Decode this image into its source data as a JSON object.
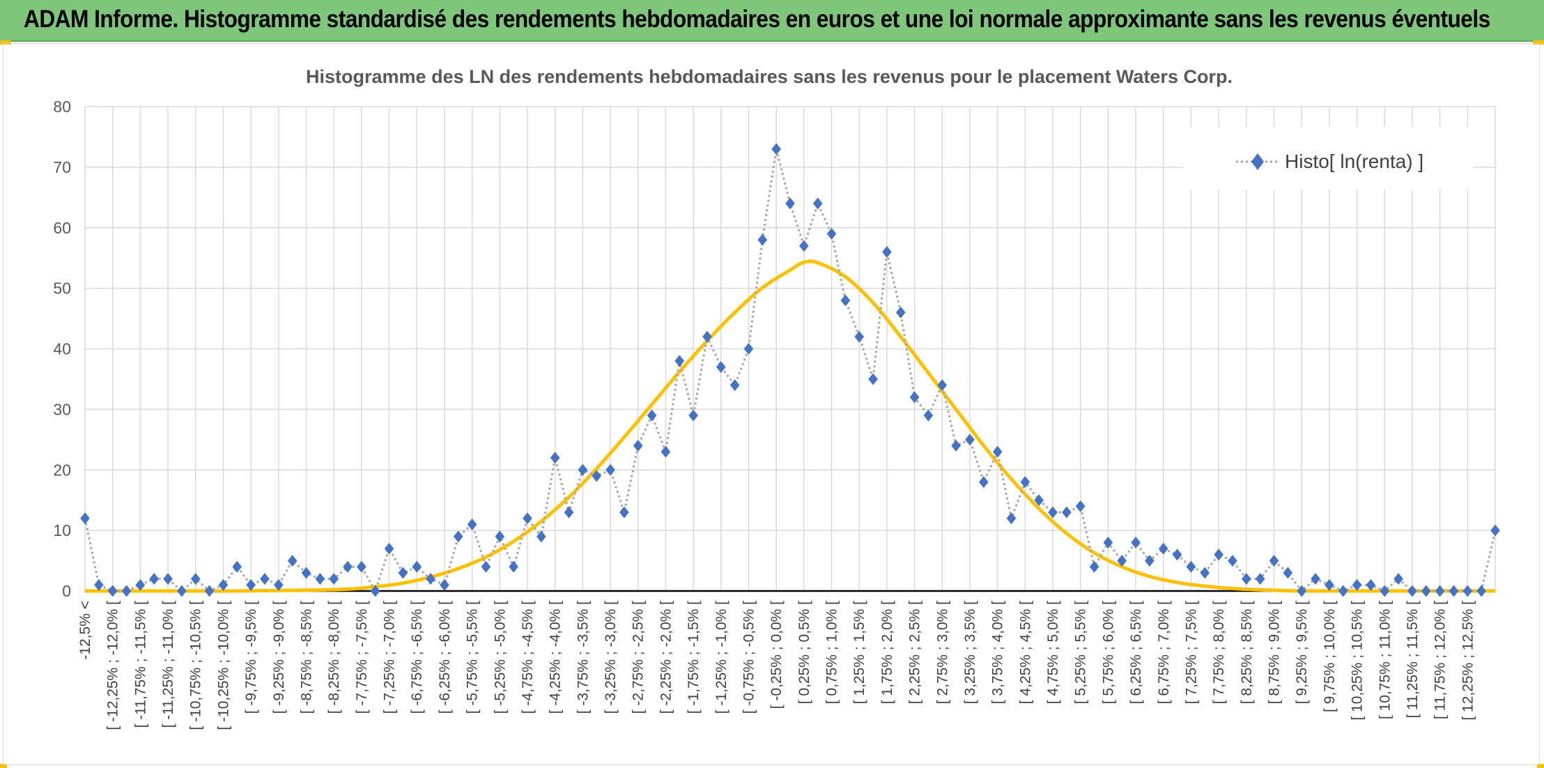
{
  "page": {
    "title": "ADAM Informe. Histogramme standardisé des rendements hebdomadaires en euros et une loi normale approximante sans les revenus éventuels",
    "banner_color": "#7dc67a",
    "accent_color": "#f2c200"
  },
  "chart_data": {
    "type": "line",
    "title": "Histogramme des LN des rendements hebdomadaires sans les revenus pour le placement Waters Corp.",
    "xlabel": "",
    "ylabel": "",
    "ylim": [
      0,
      80
    ],
    "yticks": [
      0,
      10,
      20,
      30,
      40,
      50,
      60,
      70,
      80
    ],
    "grid": true,
    "legend_position": "top-right",
    "categories": [
      "-12,5% <",
      "[ -12,25% ; -12,0% [",
      "[ -11,75% ; -11,5% [",
      "[ -11,25% ; -11,0% [",
      "[ -10,75% ; -10,5% [",
      "[ -10,25% ; -10,0% [",
      "[ -9,75% ; -9,5% [",
      "[ -9,25% ; -9,0% [",
      "[ -8,75% ; -8,5% [",
      "[ -8,25% ; -8,0% [",
      "[ -7,75% ; -7,5% [",
      "[ -7,25% ; -7,0% [",
      "[ -6,75% ; -6,5% [",
      "[ -6,25% ; -6,0% [",
      "[ -5,75% ; -5,5% [",
      "[ -5,25% ; -5,0% [",
      "[ -4,75% ; -4,5% [",
      "[ -4,25% ; -4,0% [",
      "[ -3,75% ; -3,5% [",
      "[ -3,25% ; -3,0% [",
      "[ -2,75% ; -2,5% [",
      "[ -2,25% ; -2,0% [",
      "[ -1,75% ; -1,5% [",
      "[ -1,25% ; -1,0% [",
      "[ -0,75% ; -0,5% [",
      "[ -0,25% ; 0,0% [",
      "[ 0,25% ; 0,5% [",
      "[ 0,75% ; 1,0% [",
      "[ 1,25% ; 1,5% [",
      "[ 1,75% ; 2,0% [",
      "[ 2,25% ; 2,5% [",
      "[ 2,75% ; 3,0% [",
      "[ 3,25% ; 3,5% [",
      "[ 3,75% ; 4,0% [",
      "[ 4,25% ; 4,5% [",
      "[ 4,75% ; 5,0% [",
      "[ 5,25% ; 5,5% [",
      "[ 5,75% ; 6,0% [",
      "[ 6,25% ; 6,5% [",
      "[ 6,75% ; 7,0% [",
      "[ 7,25% ; 7,5% [",
      "[ 7,75% ; 8,0% [",
      "[ 8,25% ; 8,5% [",
      "[ 8,75% ; 9,0% [",
      "[ 9,25% ; 9,5% [",
      "[ 9,75% ; 10,0% [",
      "[ 10,25% ; 10,5% [",
      "[ 10,75% ; 11,0% [",
      "[ 11,25% ; 11,5% [",
      "[ 11,75% ; 12,0% [",
      "[ 12,25% ; 12,5% ["
    ],
    "series": [
      {
        "name": "Histo[ ln(renta) ]",
        "style": "dotted line with diamond markers",
        "color": "#4472c4",
        "line_color": "#a6a6a6",
        "x": [
          -12.75,
          -12.5,
          -12.25,
          -12.0,
          -11.75,
          -11.5,
          -11.25,
          -11.0,
          -10.75,
          -10.5,
          -10.25,
          -10.0,
          -9.75,
          -9.5,
          -9.25,
          -9.0,
          -8.75,
          -8.5,
          -8.25,
          -8.0,
          -7.75,
          -7.5,
          -7.25,
          -7.0,
          -6.75,
          -6.5,
          -6.25,
          -6.0,
          -5.75,
          -5.5,
          -5.25,
          -5.0,
          -4.75,
          -4.5,
          -4.25,
          -4.0,
          -3.75,
          -3.5,
          -3.25,
          -3.0,
          -2.75,
          -2.5,
          -2.25,
          -2.0,
          -1.75,
          -1.5,
          -1.25,
          -1.0,
          -0.75,
          -0.5,
          -0.25,
          0.0,
          0.25,
          0.5,
          0.75,
          1.0,
          1.25,
          1.5,
          1.75,
          2.0,
          2.25,
          2.5,
          2.75,
          3.0,
          3.25,
          3.5,
          3.75,
          4.0,
          4.25,
          4.5,
          4.75,
          5.0,
          5.25,
          5.5,
          5.75,
          6.0,
          6.25,
          6.5,
          6.75,
          7.0,
          7.25,
          7.5,
          7.75,
          8.0,
          8.25,
          8.5,
          8.75,
          9.0,
          9.25,
          9.5,
          9.75,
          10.0,
          10.25,
          10.5,
          10.75,
          11.0,
          11.25,
          11.5,
          11.75,
          12.0,
          12.25,
          12.5,
          12.75
        ],
        "values": [
          12,
          1,
          0,
          0,
          1,
          2,
          2,
          0,
          2,
          0,
          1,
          4,
          1,
          2,
          1,
          5,
          3,
          2,
          2,
          4,
          4,
          0,
          7,
          3,
          4,
          2,
          1,
          9,
          11,
          4,
          9,
          4,
          12,
          9,
          22,
          13,
          20,
          19,
          20,
          13,
          24,
          29,
          23,
          38,
          29,
          42,
          37,
          34,
          40,
          58,
          73,
          64,
          57,
          64,
          59,
          48,
          42,
          35,
          56,
          46,
          32,
          29,
          34,
          24,
          25,
          18,
          23,
          12,
          18,
          15,
          13,
          13,
          14,
          4,
          8,
          5,
          8,
          5,
          7,
          6,
          4,
          3,
          6,
          5,
          2,
          2,
          5,
          3,
          0,
          2,
          1,
          0,
          1,
          1,
          0,
          2,
          0,
          0,
          0,
          0,
          0,
          0,
          10
        ]
      },
      {
        "name": "",
        "style": "smooth line",
        "color": "#ffc000",
        "x": [
          -12.75,
          -12.0,
          -11.0,
          -10.0,
          -9.0,
          -8.0,
          -7.5,
          -7.0,
          -6.5,
          -6.0,
          -5.5,
          -5.0,
          -4.5,
          -4.0,
          -3.5,
          -3.0,
          -2.5,
          -2.0,
          -1.5,
          -1.0,
          -0.5,
          0.0,
          0.25,
          0.5,
          1.0,
          1.5,
          2.0,
          2.5,
          3.0,
          3.5,
          4.0,
          4.5,
          5.0,
          5.5,
          6.0,
          6.5,
          7.0,
          7.5,
          8.0,
          8.5,
          9.0,
          9.5,
          10.0,
          11.0,
          12.0,
          12.75
        ],
        "values": [
          0,
          0,
          0,
          0,
          0.1,
          0.3,
          0.7,
          1.3,
          2.3,
          3.7,
          5.6,
          8.2,
          11.5,
          15.5,
          20.2,
          25.4,
          30.8,
          36.2,
          41.3,
          46.0,
          50.1,
          53.0,
          54.3,
          54.2,
          51.9,
          47.6,
          42.0,
          36.0,
          30.0,
          24.0,
          18.5,
          13.6,
          9.5,
          6.3,
          4.0,
          2.4,
          1.4,
          0.8,
          0.4,
          0.2,
          0.05,
          0,
          0,
          0,
          0,
          0
        ]
      }
    ]
  }
}
